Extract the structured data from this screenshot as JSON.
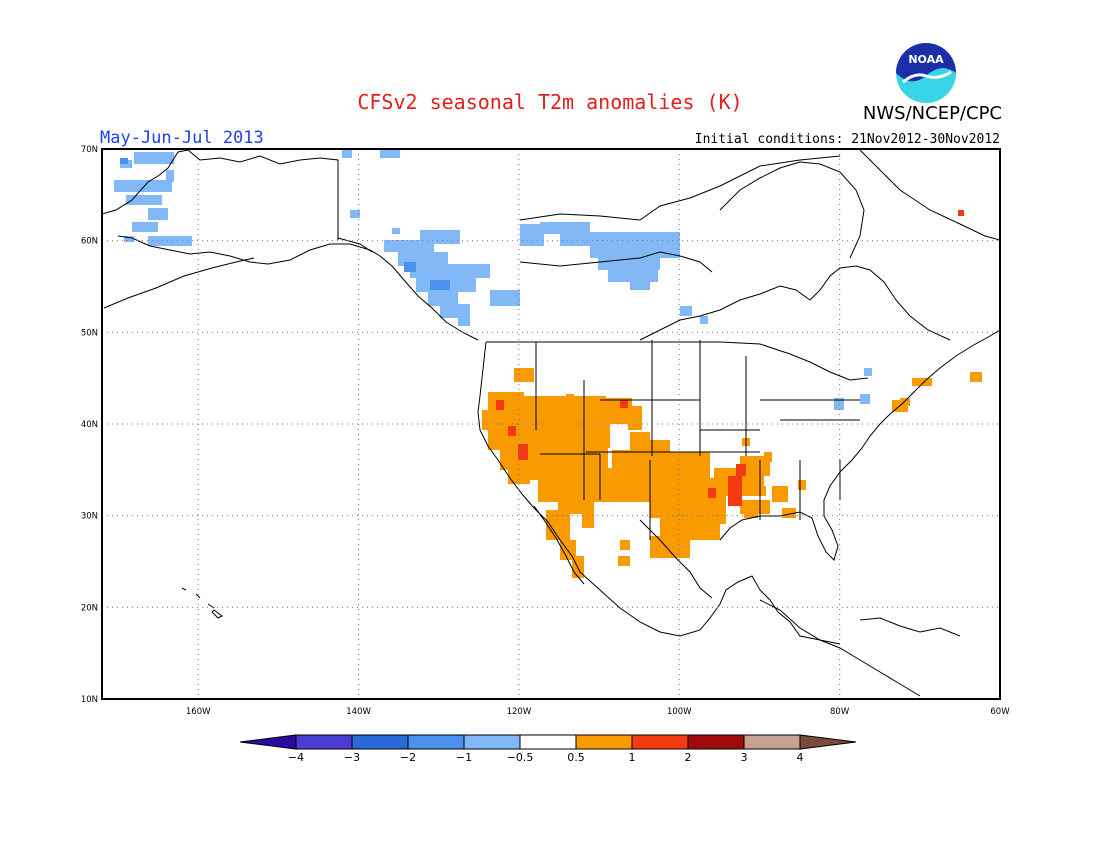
{
  "title": "CFSv2 seasonal T2m anomalies (K)",
  "period": "May-Jun-Jul 2013",
  "initial_conditions": "Initial conditions: 21Nov2012-30Nov2012",
  "agency": "NWS/NCEP/CPC",
  "logo_text": "NOAA",
  "map": {
    "lon_range": [
      -172,
      -60
    ],
    "lat_range": [
      10,
      70
    ],
    "lon_labels": [
      "160W",
      "140W",
      "120W",
      "100W",
      "80W",
      "60W"
    ],
    "lon_values": [
      -160,
      -140,
      -120,
      -100,
      -80,
      -60
    ],
    "lat_labels": [
      "10N",
      "20N",
      "30N",
      "40N",
      "50N",
      "60N",
      "70N"
    ],
    "lat_values": [
      10,
      20,
      30,
      40,
      50,
      60,
      70
    ],
    "gridlines": true
  },
  "colorbar": {
    "colors": [
      "#2a0aa0",
      "#4a3cd4",
      "#2a6ad8",
      "#4a92ee",
      "#82b8f6",
      "#ffffff",
      "#f89a00",
      "#f43a10",
      "#a00a0a",
      "#c8a090",
      "#7a4a3a"
    ],
    "tick_labels": [
      "-4",
      "-3",
      "-2",
      "-1",
      "-0.5",
      "0.5",
      "1",
      "2",
      "3",
      "4"
    ]
  },
  "anomaly_regions": [
    {
      "category": "-1 to -0.5",
      "color": "#82b8f6",
      "area": "Western Alaska"
    },
    {
      "category": "-1 to -0.5",
      "color": "#82b8f6",
      "area": "Southeast Alaska / British Columbia"
    },
    {
      "category": "-1 to -0.5",
      "color": "#82b8f6",
      "area": "Northern Canada (Nunavut / NW Territories)"
    },
    {
      "category": "-2 to -1",
      "color": "#4a92ee",
      "area": "Coastal British Columbia"
    },
    {
      "category": "0.5 to 1",
      "color": "#f89a00",
      "area": "Southwestern United States / Great Basin"
    },
    {
      "category": "0.5 to 1",
      "color": "#f89a00",
      "area": "Southern Plains / Texas"
    },
    {
      "category": "0.5 to 1",
      "color": "#f89a00",
      "area": "Baja California / NW Mexico"
    },
    {
      "category": "0.5 to 1",
      "color": "#f89a00",
      "area": "New England"
    },
    {
      "category": "1 to 2",
      "color": "#f43a10",
      "area": "Lower Mississippi Valley"
    },
    {
      "category": "1 to 2",
      "color": "#f43a10",
      "area": "Southern Nevada / Arizona"
    }
  ]
}
